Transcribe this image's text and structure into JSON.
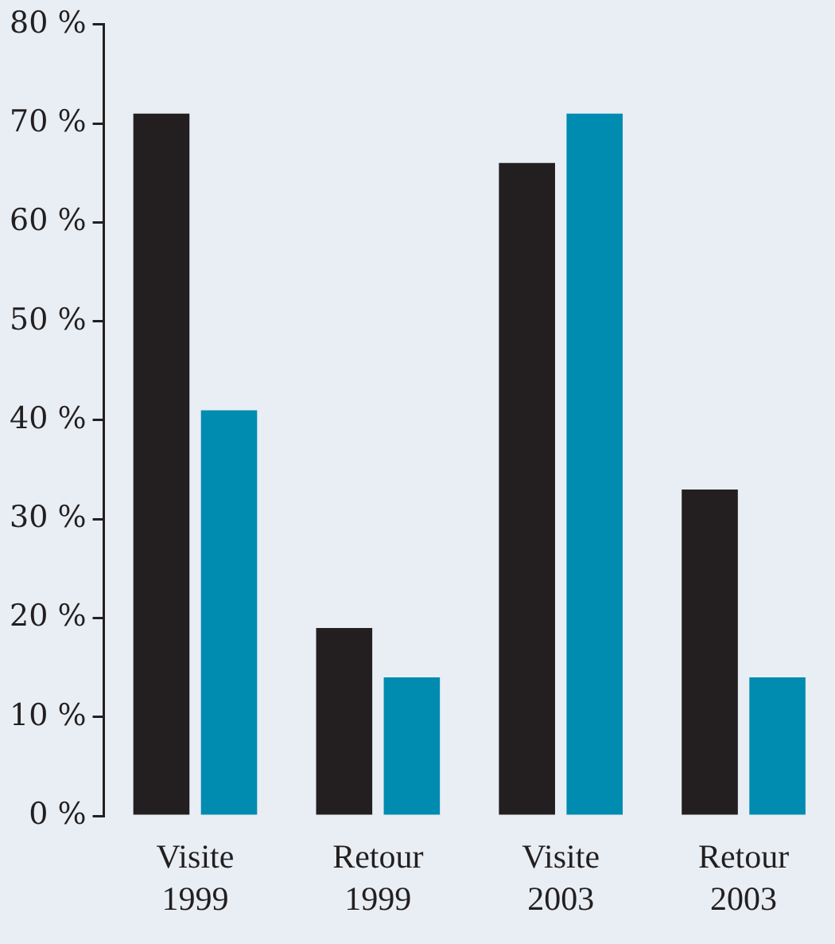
{
  "chart_data": {
    "type": "bar",
    "categories": [
      "Visite 1999",
      "Retour 1999",
      "Visite 2003",
      "Retour 2003"
    ],
    "series": [
      {
        "color": "#231f20",
        "values": [
          71,
          19,
          66,
          33
        ]
      },
      {
        "color": "#008bb0",
        "values": [
          41,
          14,
          71,
          14
        ]
      }
    ],
    "ylim": [
      0,
      80
    ],
    "yticks": [
      {
        "value": 0,
        "label": "0 %"
      },
      {
        "value": 10,
        "label": "10 %"
      },
      {
        "value": 20,
        "label": "20 %"
      },
      {
        "value": 30,
        "label": "30 %"
      },
      {
        "value": 40,
        "label": "40 %"
      },
      {
        "value": 50,
        "label": "50 %"
      },
      {
        "value": 60,
        "label": "60 %"
      },
      {
        "value": 70,
        "label": "70 %"
      },
      {
        "value": 80,
        "label": "80 %"
      }
    ],
    "grid": false,
    "legend": false
  }
}
